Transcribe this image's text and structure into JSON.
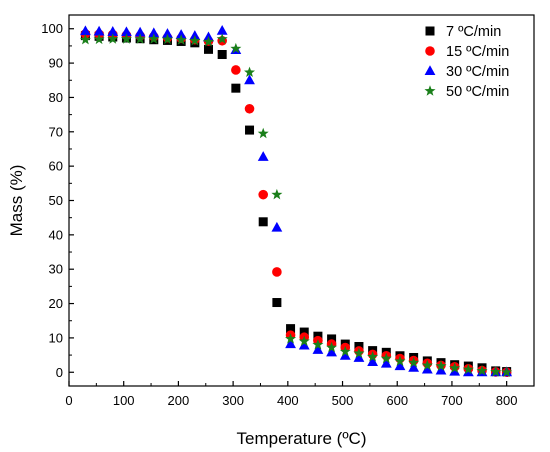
{
  "chart_data": {
    "type": "scatter",
    "title": "",
    "xlabel": "Temperature (ºC)",
    "ylabel": "Mass (%)",
    "xlim": [
      0,
      850
    ],
    "ylim": [
      -4,
      104
    ],
    "xticks": [
      0,
      100,
      200,
      300,
      400,
      500,
      600,
      700,
      800
    ],
    "yticks": [
      0,
      10,
      20,
      30,
      40,
      50,
      60,
      70,
      80,
      90,
      100
    ],
    "grid": false,
    "legend_position": "top-right",
    "series": [
      {
        "name": "7 ºC/min",
        "marker": "square",
        "color": "#000000",
        "x": [
          30,
          55,
          80,
          105,
          130,
          155,
          180,
          205,
          230,
          255,
          280,
          305,
          330,
          355,
          380,
          405,
          430,
          455,
          480,
          505,
          530,
          555,
          580,
          605,
          630,
          655,
          680,
          705,
          730,
          755,
          780,
          800
        ],
        "y": [
          98,
          97.8,
          97.6,
          97.3,
          97.1,
          96.8,
          96.6,
          96.3,
          95.9,
          94.0,
          92.5,
          82.7,
          70.5,
          43.8,
          20.3,
          12.7,
          11.7,
          10.5,
          9.7,
          8.2,
          7.5,
          6.3,
          5.8,
          4.8,
          4.3,
          3.3,
          2.8,
          2.2,
          1.8,
          1.3,
          0.4,
          0.2
        ]
      },
      {
        "name": "15 ºC/min",
        "marker": "circle",
        "color": "#ff0000",
        "x": [
          30,
          55,
          80,
          105,
          130,
          155,
          180,
          205,
          230,
          255,
          280,
          305,
          330,
          355,
          380,
          405,
          430,
          455,
          480,
          505,
          530,
          555,
          580,
          605,
          630,
          655,
          680,
          705,
          730,
          755,
          780,
          800
        ],
        "y": [
          98.5,
          98.4,
          98.3,
          98.1,
          97.9,
          97.7,
          97.4,
          97.2,
          96.8,
          96.4,
          96.5,
          88,
          76.7,
          51.7,
          29.2,
          10.8,
          10.2,
          9.2,
          8.2,
          7.2,
          6.2,
          5.2,
          4.8,
          4.0,
          3.4,
          2.6,
          2.0,
          1.6,
          1.0,
          0.5,
          0.1,
          0.0
        ]
      },
      {
        "name": "30 ºC/min",
        "marker": "triangle",
        "color": "#0000ff",
        "x": [
          30,
          55,
          80,
          105,
          130,
          155,
          180,
          205,
          230,
          255,
          280,
          305,
          330,
          355,
          380,
          405,
          430,
          455,
          480,
          505,
          530,
          555,
          580,
          605,
          630,
          655,
          680,
          705,
          730,
          755,
          780,
          800
        ],
        "y": [
          99.3,
          99.2,
          99.1,
          99.0,
          98.9,
          98.7,
          98.5,
          98.2,
          97.9,
          97.5,
          99.4,
          93.8,
          85,
          62.7,
          42.1,
          8.2,
          7.8,
          6.5,
          5.8,
          4.8,
          4.2,
          3.0,
          2.5,
          1.8,
          1.3,
          0.8,
          0.5,
          0.2,
          0.0,
          0.0,
          0.0,
          0.0
        ]
      },
      {
        "name": "50 ºC/min",
        "marker": "star",
        "color": "#1a7f1a",
        "x": [
          30,
          55,
          80,
          105,
          130,
          155,
          180,
          205,
          230,
          255,
          280,
          305,
          330,
          355,
          380,
          405,
          430,
          455,
          480,
          505,
          530,
          555,
          580,
          605,
          630,
          655,
          680,
          705,
          730,
          755,
          780,
          800
        ],
        "y": [
          96.8,
          96.9,
          97.0,
          97.0,
          97.0,
          97.0,
          96.9,
          96.7,
          96.5,
          96.2,
          97.0,
          94.2,
          87.3,
          69.5,
          51.7,
          9.7,
          9.0,
          8.0,
          7.2,
          6.0,
          5.5,
          4.5,
          4.0,
          3.2,
          2.8,
          2.0,
          1.8,
          1.2,
          0.8,
          0.4,
          0.1,
          0.0
        ]
      }
    ]
  }
}
